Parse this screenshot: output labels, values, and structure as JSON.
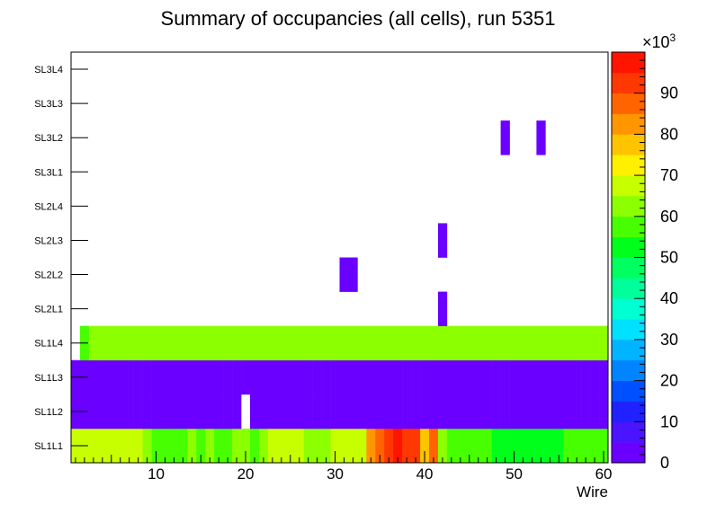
{
  "chart_data": {
    "type": "heatmap",
    "title": "Summary of occupancies (all cells),      run 5351",
    "xlabel": "Wire",
    "ylabel": "",
    "xlim": [
      0.5,
      60.5
    ],
    "x_ticks": [
      10,
      20,
      30,
      40,
      50,
      60
    ],
    "y_categories": [
      "SL1L1",
      "SL1L2",
      "SL1L3",
      "SL1L4",
      "SL2L1",
      "SL2L2",
      "SL2L3",
      "SL2L4",
      "SL3L1",
      "SL3L2",
      "SL3L3",
      "SL3L4"
    ],
    "z_range": [
      0,
      100000
    ],
    "z_exponent_label": "×10",
    "z_exponent_power": "3",
    "z_ticks": [
      0,
      10,
      20,
      30,
      40,
      50,
      60,
      70,
      80,
      90
    ],
    "z_ticks_labels": [
      "0",
      "10",
      "20",
      "30",
      "40",
      "50",
      "60",
      "70",
      "80",
      "90"
    ],
    "rows": {
      "SL1L1": [
        67,
        67,
        67,
        67,
        67,
        67,
        67,
        67,
        62,
        58,
        58,
        58,
        58,
        62,
        58,
        62,
        58,
        58,
        62,
        62,
        58,
        62,
        67,
        67,
        67,
        67,
        62,
        62,
        62,
        67,
        67,
        67,
        67,
        82,
        85,
        93,
        95,
        93,
        93,
        75,
        88,
        62,
        58,
        58,
        58,
        58,
        58,
        52,
        52,
        52,
        52,
        52,
        52,
        52,
        52,
        56,
        56,
        56,
        56,
        56
      ],
      "SL1L2": [
        2,
        2,
        2,
        2,
        2,
        2,
        2,
        2,
        2,
        2,
        2,
        2,
        2,
        2,
        2,
        2,
        2,
        2,
        2,
        null,
        2,
        2,
        2,
        2,
        2,
        2,
        2,
        2,
        2,
        2,
        2,
        2,
        2,
        2,
        2,
        2,
        2,
        2,
        2,
        2,
        2,
        2,
        2,
        2,
        2,
        2,
        2,
        2,
        2,
        2,
        2,
        2,
        2,
        2,
        2,
        2,
        2,
        2,
        2,
        2
      ],
      "SL1L3": [
        2,
        2,
        2,
        2,
        2,
        2,
        2,
        2,
        2,
        2,
        2,
        2,
        2,
        2,
        2,
        2,
        2,
        2,
        2,
        2,
        2,
        2,
        2,
        2,
        2,
        2,
        2,
        2,
        2,
        2,
        2,
        2,
        2,
        2,
        2,
        2,
        2,
        2,
        2,
        2,
        2,
        2,
        2,
        2,
        2,
        2,
        2,
        2,
        2,
        2,
        2,
        2,
        2,
        2,
        2,
        2,
        2,
        2,
        2,
        2
      ],
      "SL1L4": [
        null,
        55,
        62,
        62,
        62,
        62,
        62,
        62,
        62,
        62,
        62,
        62,
        62,
        62,
        62,
        62,
        62,
        62,
        62,
        62,
        62,
        62,
        62,
        62,
        62,
        62,
        62,
        62,
        62,
        62,
        62,
        62,
        62,
        62,
        62,
        62,
        62,
        62,
        62,
        62,
        62,
        62,
        62,
        62,
        62,
        62,
        62,
        62,
        62,
        62,
        62,
        62,
        62,
        62,
        62,
        62,
        62,
        62,
        62,
        62
      ],
      "SL2L1": [
        null,
        null,
        null,
        null,
        null,
        null,
        null,
        null,
        null,
        null,
        null,
        null,
        null,
        null,
        null,
        null,
        null,
        null,
        null,
        null,
        null,
        null,
        null,
        null,
        null,
        null,
        null,
        null,
        null,
        null,
        null,
        null,
        null,
        null,
        null,
        null,
        null,
        null,
        null,
        null,
        null,
        2,
        null,
        null,
        null,
        null,
        null,
        null,
        null,
        null,
        null,
        null,
        null,
        null,
        null,
        null,
        null,
        null,
        null,
        null
      ],
      "SL2L2": [
        null,
        null,
        null,
        null,
        null,
        null,
        null,
        null,
        null,
        null,
        null,
        null,
        null,
        null,
        null,
        null,
        null,
        null,
        null,
        null,
        null,
        null,
        null,
        null,
        null,
        null,
        null,
        null,
        null,
        null,
        2,
        2,
        null,
        null,
        null,
        null,
        null,
        null,
        null,
        null,
        null,
        null,
        null,
        null,
        null,
        null,
        null,
        null,
        null,
        null,
        null,
        null,
        null,
        null,
        null,
        null,
        null,
        null,
        null,
        null
      ],
      "SL2L3": [
        null,
        null,
        null,
        null,
        null,
        null,
        null,
        null,
        null,
        null,
        null,
        null,
        null,
        null,
        null,
        null,
        null,
        null,
        null,
        null,
        null,
        null,
        null,
        null,
        null,
        null,
        null,
        null,
        null,
        null,
        null,
        null,
        null,
        null,
        null,
        null,
        null,
        null,
        null,
        null,
        null,
        2,
        null,
        null,
        null,
        null,
        null,
        null,
        null,
        null,
        null,
        null,
        null,
        null,
        null,
        null,
        null,
        null,
        null,
        null
      ],
      "SL2L4": [
        null,
        null,
        null,
        null,
        null,
        null,
        null,
        null,
        null,
        null,
        null,
        null,
        null,
        null,
        null,
        null,
        null,
        null,
        null,
        null,
        null,
        null,
        null,
        null,
        null,
        null,
        null,
        null,
        null,
        null,
        null,
        null,
        null,
        null,
        null,
        null,
        null,
        null,
        null,
        null,
        null,
        null,
        null,
        null,
        null,
        null,
        null,
        null,
        null,
        null,
        null,
        null,
        null,
        null,
        null,
        null,
        null,
        null,
        null,
        null
      ],
      "SL3L1": [
        null,
        null,
        null,
        null,
        null,
        null,
        null,
        null,
        null,
        null,
        null,
        null,
        null,
        null,
        null,
        null,
        null,
        null,
        null,
        null,
        null,
        null,
        null,
        null,
        null,
        null,
        null,
        null,
        null,
        null,
        null,
        null,
        null,
        null,
        null,
        null,
        null,
        null,
        null,
        null,
        null,
        null,
        null,
        null,
        null,
        null,
        null,
        null,
        null,
        null,
        null,
        null,
        null,
        null,
        null,
        null,
        null,
        null,
        null,
        null
      ],
      "SL3L2": [
        null,
        null,
        null,
        null,
        null,
        null,
        null,
        null,
        null,
        null,
        null,
        null,
        null,
        null,
        null,
        null,
        null,
        null,
        null,
        null,
        null,
        null,
        null,
        null,
        null,
        null,
        null,
        null,
        null,
        null,
        null,
        null,
        null,
        null,
        null,
        null,
        null,
        null,
        null,
        null,
        null,
        null,
        null,
        null,
        null,
        null,
        null,
        null,
        2,
        null,
        null,
        null,
        2,
        null,
        null,
        null,
        null,
        null,
        null,
        null
      ],
      "SL3L3": [
        null,
        null,
        null,
        null,
        null,
        null,
        null,
        null,
        null,
        null,
        null,
        null,
        null,
        null,
        null,
        null,
        null,
        null,
        null,
        null,
        null,
        null,
        null,
        null,
        null,
        null,
        null,
        null,
        null,
        null,
        null,
        null,
        null,
        null,
        null,
        null,
        null,
        null,
        null,
        null,
        null,
        null,
        null,
        null,
        null,
        null,
        null,
        null,
        null,
        null,
        null,
        null,
        null,
        null,
        null,
        null,
        null,
        null,
        null,
        null
      ],
      "SL3L4": [
        null,
        null,
        null,
        null,
        null,
        null,
        null,
        null,
        null,
        null,
        null,
        null,
        null,
        null,
        null,
        null,
        null,
        null,
        null,
        null,
        null,
        null,
        null,
        null,
        null,
        null,
        null,
        null,
        null,
        null,
        null,
        null,
        null,
        null,
        null,
        null,
        null,
        null,
        null,
        null,
        null,
        null,
        null,
        null,
        null,
        null,
        null,
        null,
        null,
        null,
        null,
        null,
        null,
        null,
        null,
        null,
        null,
        null,
        null,
        null
      ]
    },
    "palette": [
      "#6a00ff",
      "#4a14ff",
      "#1f22ff",
      "#0050ff",
      "#0084ff",
      "#00b4ff",
      "#00e0ff",
      "#00ffd2",
      "#00ff9a",
      "#00ff60",
      "#00ff1a",
      "#47ff00",
      "#8cff00",
      "#c8ff00",
      "#fff000",
      "#ffc300",
      "#ff9600",
      "#ff6400",
      "#ff3700",
      "#ff1400"
    ]
  }
}
